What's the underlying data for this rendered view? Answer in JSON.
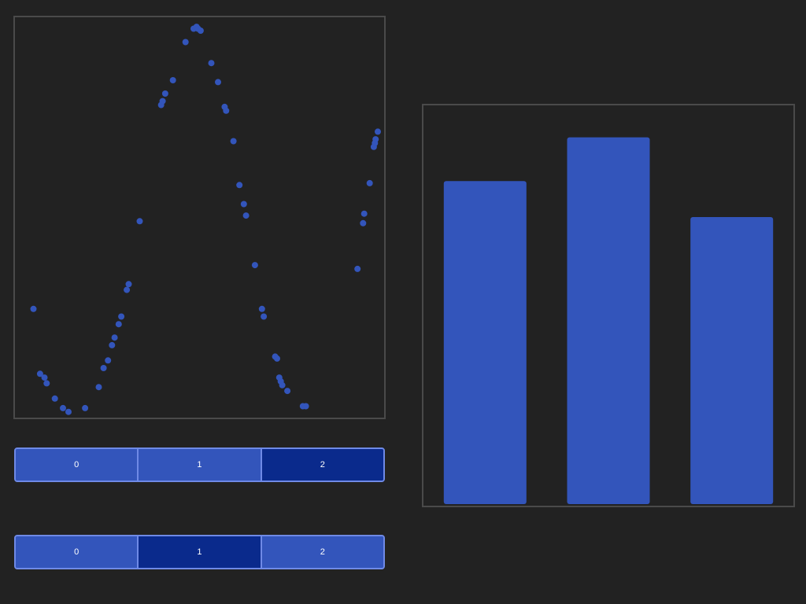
{
  "colors": {
    "background": "#222222",
    "panel_border": "#4a4a4a",
    "mark": "#3355bb",
    "segment_active": "#0a2a8c",
    "segment_border": "#6f8ae6",
    "segment_text": "#ffffff"
  },
  "chart_data": [
    {
      "type": "scatter",
      "title": "",
      "xlabel": "",
      "ylabel": "",
      "grid": false,
      "xlim": [
        0,
        100
      ],
      "ylim": [
        -1.05,
        1.05
      ],
      "x": [
        5,
        6.8,
        8,
        8.6,
        10.8,
        13,
        14.5,
        19,
        22.7,
        24,
        25.2,
        26.3,
        27,
        28.1,
        28.8,
        30.3,
        30.8,
        33.8,
        39.6,
        40,
        40.7,
        42.8,
        46.2,
        48.4,
        49.2,
        49.6,
        50.3,
        53.2,
        55,
        56.8,
        57.2,
        59.2,
        60.8,
        62,
        62.6,
        65,
        66.9,
        67.4,
        70.5,
        71,
        71.6,
        72,
        72.4,
        73.8,
        78,
        78.8,
        92.8,
        94.3,
        94.6,
        96.1,
        97.2,
        97.5,
        97.7,
        98.3
      ],
      "y": [
        -0.48,
        -0.82,
        -0.84,
        -0.87,
        -0.95,
        -1.0,
        -1.02,
        -1.0,
        -0.89,
        -0.79,
        -0.75,
        -0.67,
        -0.63,
        -0.56,
        -0.52,
        -0.38,
        -0.35,
        -0.02,
        0.59,
        0.61,
        0.65,
        0.72,
        0.92,
        0.99,
        1.0,
        0.99,
        0.98,
        0.81,
        0.71,
        0.58,
        0.56,
        0.4,
        0.17,
        0.07,
        0.01,
        -0.25,
        -0.48,
        -0.52,
        -0.73,
        -0.74,
        -0.84,
        -0.86,
        -0.88,
        -0.91,
        -0.99,
        -0.99,
        -0.27,
        -0.03,
        0.02,
        0.18,
        0.37,
        0.39,
        0.41,
        0.45
      ]
    },
    {
      "type": "bar",
      "title": "",
      "xlabel": "",
      "ylabel": "",
      "grid": false,
      "categories": [
        "",
        "",
        ""
      ],
      "values": [
        0.81,
        0.92,
        0.72
      ],
      "ylim": [
        0,
        1.0
      ]
    }
  ],
  "segment_top": {
    "labels": [
      "0",
      "1",
      "2"
    ],
    "selected_index": 2
  },
  "segment_bottom": {
    "labels": [
      "0",
      "1",
      "2"
    ],
    "selected_index": 1
  }
}
